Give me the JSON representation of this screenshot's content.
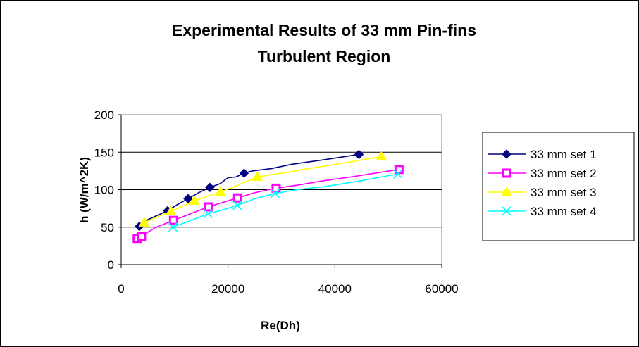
{
  "chart_data": {
    "type": "line",
    "title_line1": "Experimental Results of 33 mm Pin-fins",
    "title_line2": "Turbulent Region",
    "xlabel": "Re(Dh)",
    "ylabel": "h (W/m^2K)",
    "xlim": [
      0,
      60000
    ],
    "ylim": [
      0,
      200
    ],
    "xticks": [
      "0",
      "20000",
      "40000",
      "60000"
    ],
    "yticks": [
      "0",
      "50",
      "100",
      "150",
      "200"
    ],
    "grid": "horizontal",
    "legend_position": "right",
    "series": [
      {
        "name": "33 mm set 1",
        "color": "#000080",
        "marker": "diamond",
        "marked": [
          [
            3400,
            51
          ],
          [
            8700,
            72
          ],
          [
            12500,
            88
          ],
          [
            16600,
            103
          ],
          [
            23000,
            122
          ],
          [
            44500,
            147
          ]
        ],
        "line": [
          [
            3400,
            51
          ],
          [
            5000,
            60
          ],
          [
            8700,
            72
          ],
          [
            10500,
            80
          ],
          [
            12500,
            88
          ],
          [
            14500,
            96
          ],
          [
            16600,
            103
          ],
          [
            18500,
            108
          ],
          [
            20000,
            116
          ],
          [
            21500,
            117
          ],
          [
            23000,
            122
          ],
          [
            24500,
            125
          ],
          [
            28000,
            128
          ],
          [
            32000,
            134
          ],
          [
            38000,
            140
          ],
          [
            44500,
            147
          ]
        ]
      },
      {
        "name": "33 mm set 2",
        "color": "#FF00FF",
        "marker": "square",
        "marked": [
          [
            3000,
            35
          ],
          [
            3800,
            38
          ],
          [
            9800,
            59
          ],
          [
            16300,
            77
          ],
          [
            21800,
            89
          ],
          [
            29000,
            102
          ],
          [
            52000,
            127
          ]
        ],
        "line": [
          [
            3000,
            35
          ],
          [
            3800,
            38
          ],
          [
            6500,
            50
          ],
          [
            9800,
            59
          ],
          [
            13000,
            68
          ],
          [
            16300,
            77
          ],
          [
            19000,
            83
          ],
          [
            21800,
            89
          ],
          [
            25000,
            96
          ],
          [
            29000,
            102
          ],
          [
            33000,
            106
          ],
          [
            38000,
            112
          ],
          [
            44000,
            118
          ],
          [
            52000,
            127
          ]
        ]
      },
      {
        "name": "33 mm set 3",
        "color": "#FFFF00",
        "marker": "triangle",
        "marked": [
          [
            4300,
            56
          ],
          [
            9300,
            71
          ],
          [
            13700,
            85
          ],
          [
            18600,
            97
          ],
          [
            25500,
            117
          ],
          [
            48700,
            144
          ]
        ],
        "line": [
          [
            4300,
            56
          ],
          [
            6500,
            63
          ],
          [
            9300,
            71
          ],
          [
            11500,
            78
          ],
          [
            13700,
            85
          ],
          [
            16000,
            91
          ],
          [
            18600,
            97
          ],
          [
            21500,
            105
          ],
          [
            25500,
            117
          ],
          [
            30000,
            122
          ],
          [
            35000,
            128
          ],
          [
            42000,
            136
          ],
          [
            48700,
            144
          ]
        ]
      },
      {
        "name": "33 mm set 4",
        "color": "#00FFFF",
        "marker": "x",
        "marked": [
          [
            9700,
            50
          ],
          [
            16300,
            68
          ],
          [
            21700,
            79
          ],
          [
            28800,
            95
          ],
          [
            51800,
            121
          ]
        ],
        "line": [
          [
            9700,
            50
          ],
          [
            13000,
            59
          ],
          [
            16300,
            68
          ],
          [
            19000,
            73
          ],
          [
            21700,
            79
          ],
          [
            25000,
            88
          ],
          [
            28800,
            95
          ],
          [
            33000,
            100
          ],
          [
            38000,
            104
          ],
          [
            45000,
            112
          ],
          [
            51800,
            121
          ]
        ]
      }
    ]
  }
}
